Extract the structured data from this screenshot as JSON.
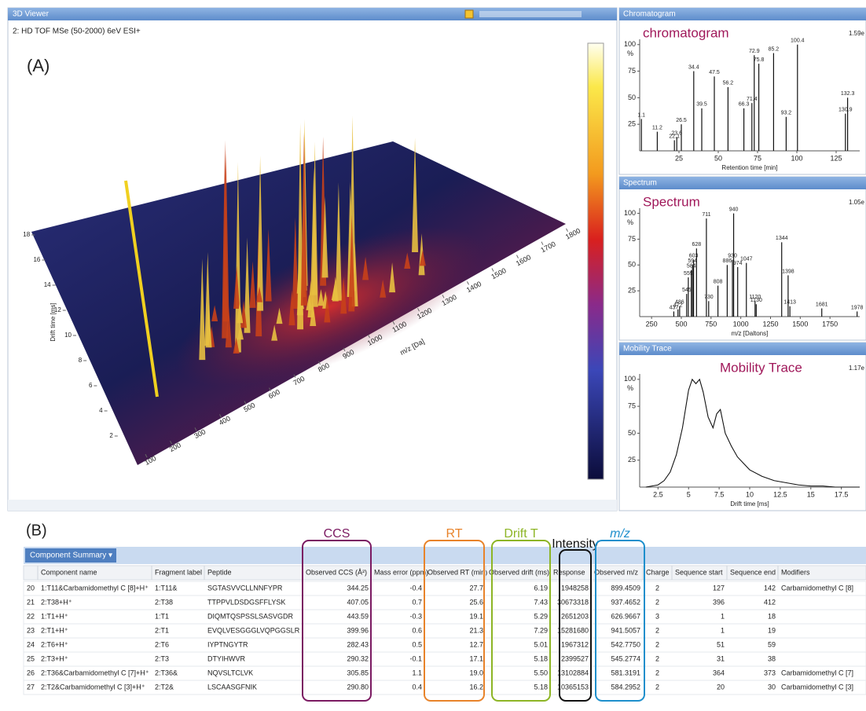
{
  "viewer": {
    "title": "3D Viewer",
    "subtitle": "2: HD TOF MSe (50-2000) 6eV ESI+",
    "panel_label": "(A)",
    "x_label": "m/z [Da]",
    "y_label": "Drift time [ms]",
    "xticks": [
      100,
      200,
      300,
      400,
      500,
      600,
      700,
      800,
      900,
      1000,
      1100,
      1200,
      1300,
      1400,
      1500,
      1600,
      1700,
      1800
    ],
    "yticks": [
      2,
      4,
      6,
      8,
      10,
      12,
      14,
      16,
      18
    ]
  },
  "chart_data": [
    {
      "type": "stem",
      "title": "Chromatogram",
      "annotation": "chromatogram",
      "scale_label": "1.59e",
      "y_unit": "%",
      "x_label": "Retention time [min]",
      "color": "#111111",
      "x": [
        1.1,
        11.2,
        22.1,
        23.6,
        26.5,
        34.4,
        39.5,
        47.5,
        56.2,
        66.3,
        71.4,
        72.9,
        75.8,
        85.2,
        93.2,
        100.4,
        130.9,
        132.3
      ],
      "values": [
        30,
        18,
        10,
        13,
        25,
        75,
        40,
        70,
        60,
        40,
        45,
        90,
        82,
        92,
        32,
        100,
        35,
        50
      ],
      "xlim": [
        0,
        140
      ],
      "xticks": [
        25,
        50,
        75,
        100,
        125
      ],
      "ylim": [
        0,
        105
      ],
      "yticks": [
        25,
        50,
        75,
        100
      ]
    },
    {
      "type": "stem",
      "title": "Spectrum",
      "annotation": "Spectrum",
      "scale_label": "1.05e",
      "y_unit": "%",
      "x_label": "m/z [Daltons]",
      "color": "#111111",
      "x": [
        437,
        472,
        486,
        545,
        559,
        584,
        594,
        603,
        628,
        711,
        730,
        808,
        886,
        930,
        940,
        974,
        1047,
        1120,
        1130,
        1344,
        1398,
        1413,
        1681,
        1978
      ],
      "values": [
        5,
        7,
        10,
        22,
        38,
        45,
        50,
        55,
        66,
        95,
        15,
        30,
        50,
        55,
        100,
        48,
        52,
        15,
        12,
        72,
        40,
        10,
        8,
        5
      ],
      "xlim": [
        150,
        2000
      ],
      "xticks": [
        250,
        500,
        750,
        1000,
        1250,
        1500,
        1750
      ],
      "ylim": [
        0,
        105
      ],
      "yticks": [
        25,
        50,
        75,
        100
      ]
    },
    {
      "type": "line",
      "title": "Mobility Trace",
      "annotation": "Mobility Trace",
      "scale_label": "1.17e",
      "y_unit": "%",
      "x_label": "Drift time [ms]",
      "color": "#111111",
      "x": [
        1.5,
        2.5,
        3,
        3.5,
        4,
        4.5,
        5,
        5.3,
        5.6,
        5.9,
        6.2,
        6.6,
        7,
        7.3,
        7.6,
        8,
        8.5,
        9,
        9.5,
        10,
        11,
        12,
        13,
        14,
        15,
        16,
        17,
        18,
        19
      ],
      "values": [
        0,
        2,
        6,
        14,
        30,
        55,
        90,
        100,
        96,
        100,
        88,
        65,
        55,
        68,
        72,
        50,
        38,
        28,
        22,
        16,
        10,
        6,
        4,
        2,
        1,
        1,
        0,
        0,
        0
      ],
      "xlim": [
        1,
        19
      ],
      "xticks": [
        2.5,
        5,
        7.5,
        10,
        12.5,
        15,
        17.5
      ],
      "ylim": [
        0,
        105
      ],
      "yticks": [
        25,
        50,
        75,
        100
      ]
    }
  ],
  "section_b": {
    "label": "(B)",
    "annotations": [
      {
        "text": "CCS",
        "color": "#7b1a62"
      },
      {
        "text": "RT",
        "color": "#e8832a"
      },
      {
        "text": "Drift T",
        "color": "#8db525"
      },
      {
        "text": "Intensity",
        "color": "#111111"
      },
      {
        "text": "m/z",
        "color": "#1e8fcc"
      }
    ]
  },
  "table": {
    "tab": "Component Summary ▾",
    "headers": [
      "Component name",
      "Fragment label",
      "Peptide",
      "Observed CCS (Å²)",
      "Mass error (ppm)",
      "Observed RT (min)",
      "Observed drift (ms)",
      "Response",
      "Observed m/z",
      "Charge",
      "Sequence start",
      "Sequence end",
      "Modifiers"
    ],
    "rows": [
      [
        "20",
        "1:T11&Carbamidomethyl C [8]+H⁺",
        "1:T11&",
        "SGTASVVCLLNNFYPR",
        "344.25",
        "-0.4",
        "27.7",
        "6.19",
        "1948258",
        "899.4509",
        "2",
        "127",
        "142",
        "Carbamidomethyl C [8]"
      ],
      [
        "21",
        "2:T38+H⁺",
        "2:T38",
        "TTPPVLDSDGSFFLYSK",
        "407.05",
        "0.7",
        "25.6",
        "7.43",
        "30673318",
        "937.4652",
        "2",
        "396",
        "412",
        null
      ],
      [
        "22",
        "1:T1+H⁺",
        "1:T1",
        "DIQMTQSPSSLSASVGDR",
        "443.59",
        "-0.3",
        "19.1",
        "5.29",
        "2651203",
        "626.9667",
        "3",
        "1",
        "18",
        null
      ],
      [
        "23",
        "2:T1+H⁺",
        "2:T1",
        "EVQLVESGGGLVQPGGSLR",
        "399.96",
        "0.6",
        "21.3",
        "7.29",
        "15281680",
        "941.5057",
        "2",
        "1",
        "19",
        null
      ],
      [
        "24",
        "2:T6+H⁺",
        "2:T6",
        "IYPTNGYTR",
        "282.43",
        "0.5",
        "12.7",
        "5.01",
        "1967312",
        "542.7750",
        "2",
        "51",
        "59",
        null
      ],
      [
        "25",
        "2:T3+H⁺",
        "2:T3",
        "DTYIHWVR",
        "290.32",
        "-0.1",
        "17.1",
        "5.18",
        "2399527",
        "545.2774",
        "2",
        "31",
        "38",
        null
      ],
      [
        "26",
        "2:T36&Carbamidomethyl C [7]+H⁺",
        "2:T36&",
        "NQVSLTCLVK",
        "305.85",
        "1.1",
        "19.0",
        "5.50",
        "13102884",
        "581.3191",
        "2",
        "364",
        "373",
        "Carbamidomethyl C [7]"
      ],
      [
        "27",
        "2:T2&Carbamidomethyl C [3]+H⁺",
        "2:T2&",
        "LSCAASGFNIK",
        "290.80",
        "0.4",
        "16.2",
        "5.18",
        "10365153",
        "584.2952",
        "2",
        "20",
        "30",
        "Carbamidomethyl C [3]"
      ]
    ]
  }
}
